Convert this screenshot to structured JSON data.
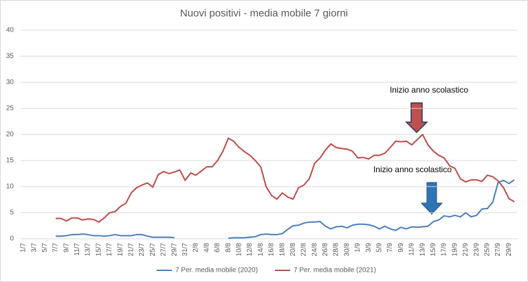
{
  "chart_data": {
    "type": "line",
    "title": "Nuovi positivi - media mobile 7 giorni",
    "categories": [
      "1/7",
      null,
      "3/7",
      null,
      "5/7",
      null,
      "7/7",
      null,
      "9/7",
      null,
      "11/7",
      null,
      "13/7",
      null,
      "15/7",
      null,
      "17/7",
      null,
      "19/7",
      null,
      "21/7",
      null,
      "23/7",
      null,
      "25/7",
      null,
      "27/7",
      null,
      "29/7",
      null,
      "31/7",
      null,
      "2/8",
      null,
      "4/8",
      null,
      "6/8",
      null,
      "8/8",
      null,
      "10/8",
      null,
      "12/8",
      null,
      "14/8",
      null,
      "16/8",
      null,
      "18/8",
      null,
      "20/8",
      null,
      "22/8",
      null,
      "24/8",
      null,
      "26/8",
      null,
      "28/8",
      null,
      "30/8",
      null,
      "1/9",
      null,
      "3/9",
      null,
      "5/9",
      null,
      "7/9",
      null,
      "9/9",
      null,
      "11/9",
      null,
      "13/9",
      null,
      "15/9",
      null,
      "17/9",
      null,
      "19/9",
      null,
      "21/9",
      null,
      "23/9",
      null,
      "25/9",
      null,
      "27/9",
      null,
      "29/9",
      null
    ],
    "series": [
      {
        "name": "7 Per. media mobile (2020)",
        "color": "#4a7ebb",
        "values": [
          null,
          null,
          null,
          null,
          null,
          null,
          0.5,
          0.5,
          0.6,
          0.8,
          0.8,
          0.9,
          0.8,
          0.6,
          0.6,
          0.5,
          0.6,
          0.8,
          0.6,
          0.6,
          0.6,
          0.8,
          0.8,
          0.5,
          0.3,
          0.3,
          0.3,
          0.3,
          0.2,
          null,
          null,
          null,
          null,
          null,
          null,
          null,
          null,
          null,
          0.1,
          0.2,
          0.2,
          0.2,
          0.3,
          0.4,
          0.8,
          0.9,
          0.8,
          0.8,
          1.0,
          1.8,
          2.5,
          2.6,
          3.0,
          3.2,
          3.2,
          3.3,
          2.4,
          1.9,
          2.3,
          2.4,
          2.1,
          2.6,
          2.8,
          2.8,
          2.7,
          2.4,
          1.9,
          2.4,
          1.9,
          1.6,
          2.2,
          1.9,
          2.3,
          2.2,
          2.3,
          2.4,
          3.3,
          3.6,
          4.4,
          4.2,
          4.5,
          4.2,
          5.0,
          4.2,
          4.5,
          5.7,
          5.8,
          7.0,
          10.8,
          11.2,
          10.6,
          11.3
        ]
      },
      {
        "name": "7 Per. media mobile (2021)",
        "color": "#be4b48",
        "values": [
          null,
          null,
          null,
          null,
          null,
          null,
          3.9,
          3.9,
          3.4,
          4.0,
          4.0,
          3.6,
          3.8,
          3.7,
          3.2,
          4.0,
          5.0,
          5.2,
          6.2,
          6.8,
          8.8,
          9.8,
          10.3,
          10.7,
          9.9,
          12.3,
          12.9,
          12.5,
          12.8,
          13.2,
          11.2,
          12.6,
          12.2,
          13.0,
          13.8,
          13.8,
          15.0,
          16.8,
          19.3,
          18.7,
          17.5,
          16.7,
          16.0,
          15.0,
          13.8,
          10.0,
          8.3,
          7.6,
          8.8,
          8.0,
          7.6,
          9.8,
          10.3,
          11.5,
          14.5,
          15.5,
          17.0,
          18.2,
          17.5,
          17.3,
          17.2,
          16.8,
          15.5,
          15.6,
          15.3,
          16.0,
          16.0,
          16.4,
          17.5,
          18.7,
          18.6,
          18.7,
          18.0,
          19.0,
          20.0,
          18.0,
          16.8,
          16.0,
          15.5,
          14.0,
          13.5,
          11.5,
          10.9,
          11.3,
          11.3,
          11.0,
          12.2,
          11.9,
          11.1,
          9.8,
          7.7,
          7.1
        ]
      }
    ],
    "annotations": [
      "Inizio anno scolastico",
      "Inizio anno scolastico"
    ],
    "ylim": [
      0,
      40
    ],
    "yticks": [
      0,
      5,
      10,
      15,
      20,
      25,
      30,
      35,
      40
    ],
    "grid": true
  }
}
